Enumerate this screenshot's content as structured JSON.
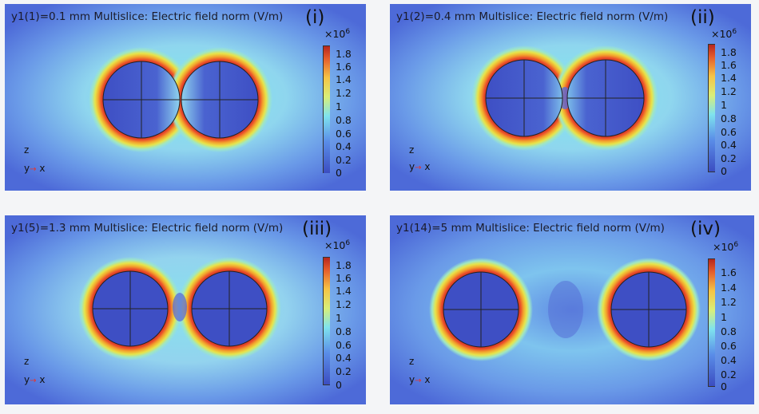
{
  "panels": [
    {
      "title": "y1(1)=0.1 mm  Multislice: Electric field norm (V/m)",
      "roman": "(i)",
      "colorbar": {
        "multiplier_base": "×10",
        "multiplier_exp": "6",
        "ticks": [
          "1.8",
          "1.6",
          "1.4",
          "1.2",
          "1",
          "0.8",
          "0.6",
          "0.4",
          "0.2",
          "0"
        ]
      },
      "axes": {
        "z": "z",
        "y": "y",
        "x": "x"
      }
    },
    {
      "title": "y1(2)=0.4 mm  Multislice: Electric field norm (V/m)",
      "roman": "(ii)",
      "colorbar": {
        "multiplier_base": "×10",
        "multiplier_exp": "6",
        "ticks": [
          "1.8",
          "1.6",
          "1.4",
          "1.2",
          "1",
          "0.8",
          "0.6",
          "0.4",
          "0.2",
          "0"
        ]
      },
      "axes": {
        "z": "z",
        "y": "y",
        "x": "x"
      }
    },
    {
      "title": "y1(5)=1.3 mm  Multislice: Electric field norm (V/m)",
      "roman": "(iii)",
      "colorbar": {
        "multiplier_base": "×10",
        "multiplier_exp": "6",
        "ticks": [
          "1.8",
          "1.6",
          "1.4",
          "1.2",
          "1",
          "0.8",
          "0.6",
          "0.4",
          "0.2",
          "0"
        ]
      },
      "axes": {
        "z": "z",
        "y": "y",
        "x": "x"
      }
    },
    {
      "title": "y1(14)=5 mm  Multislice: Electric field norm (V/m)",
      "roman": "(iv)",
      "colorbar": {
        "multiplier_base": "×10",
        "multiplier_exp": "6",
        "ticks": [
          "1.6",
          "1.4",
          "1.2",
          "1",
          "0.8",
          "0.6",
          "0.4",
          "0.2",
          "0"
        ]
      },
      "axes": {
        "z": "z",
        "y": "y",
        "x": "x"
      }
    }
  ],
  "colors": {
    "background_field": "#4a6ad8",
    "halo_inner": "#c0392b",
    "conductor": "#3d4fc4"
  }
}
